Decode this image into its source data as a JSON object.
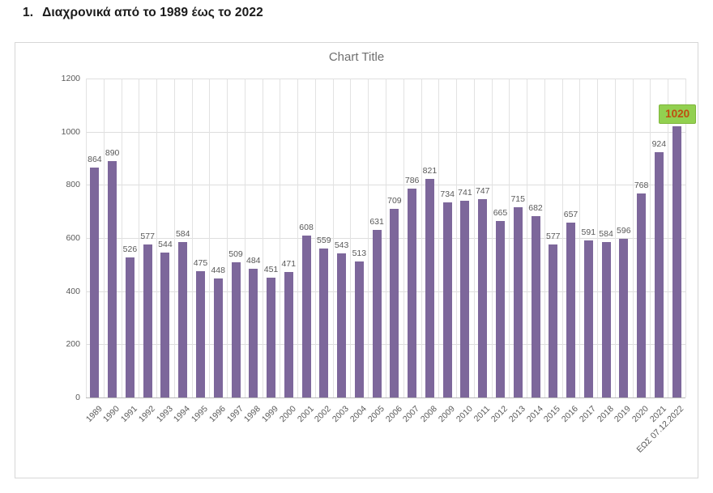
{
  "heading": {
    "number": "1.",
    "text": "Διαχρονικά από το 1989 έως το 2022"
  },
  "chart": {
    "title": "Chart Title"
  },
  "chart_data": {
    "type": "bar",
    "title": "Chart Title",
    "xlabel": "",
    "ylabel": "",
    "categories": [
      "1989",
      "1990",
      "1991",
      "1992",
      "1993",
      "1994",
      "1995",
      "1996",
      "1997",
      "1998",
      "1999",
      "2000",
      "2001",
      "2002",
      "2003",
      "2004",
      "2005",
      "2006",
      "2007",
      "2008",
      "2009",
      "2010",
      "2011",
      "2012",
      "2013",
      "2014",
      "2015",
      "2016",
      "2017",
      "2018",
      "2019",
      "2020",
      "2021",
      "ΕΩΣ 07.12.2022"
    ],
    "values": [
      864,
      890,
      526,
      577,
      544,
      584,
      475,
      448,
      509,
      484,
      451,
      471,
      608,
      559,
      543,
      513,
      631,
      709,
      786,
      821,
      734,
      741,
      747,
      665,
      715,
      682,
      577,
      657,
      591,
      584,
      596,
      768,
      924,
      1020
    ],
    "ylim": [
      0,
      1200
    ],
    "ytick_interval": 200,
    "grid": true,
    "legend": "none",
    "bar_color": "#7d679b",
    "value_label_color": "#595959",
    "highlight": {
      "category": "ΕΩΣ 07.12.2022",
      "value": 1020,
      "box_background": "#92d050",
      "box_border": "#7eb63b",
      "text_color": "#bf4d10"
    }
  }
}
